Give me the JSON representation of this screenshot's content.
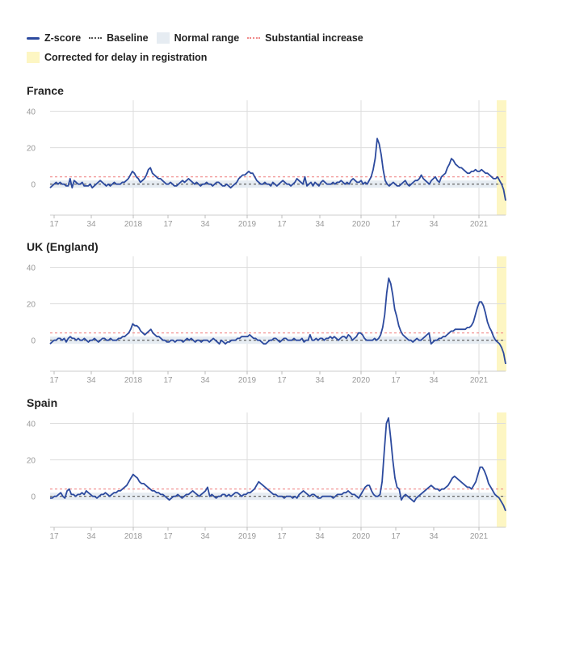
{
  "legend": {
    "zscore": "Z-score",
    "baseline": "Baseline",
    "normal": "Normal range",
    "substantial": "Substantial increase",
    "corrected": "Corrected for delay in registration"
  },
  "colors": {
    "line": "#2c4a9e",
    "baseline": "#555555",
    "normal_band": "#e6ecf2",
    "substantial": "#f08a8a",
    "corrected_band": "#fdf6c3",
    "grid": "#dddddd"
  },
  "chart_data": [
    {
      "type": "line",
      "title": "France",
      "ylim": [
        -17,
        46
      ],
      "yticks": [
        0,
        20,
        40
      ],
      "x_ticks": [
        "17",
        "34",
        "2018",
        "17",
        "34",
        "2019",
        "17",
        "34",
        "2020",
        "17",
        "34",
        "2021"
      ],
      "normal_range": [
        -2,
        2
      ],
      "substantial_increase": 4,
      "series": [
        {
          "values": [
            -2,
            -1,
            0,
            1,
            0,
            1,
            0,
            0,
            -1,
            -1,
            3,
            -2,
            2,
            1,
            0,
            0,
            1,
            -1,
            -1,
            -1,
            0,
            -2,
            -1,
            0,
            1,
            2,
            1,
            0,
            -1,
            0,
            -1,
            0,
            1,
            0,
            0,
            0,
            1,
            1,
            2,
            3,
            5,
            7,
            6,
            4,
            3,
            1,
            2,
            3,
            5,
            8,
            9,
            6,
            5,
            4,
            3,
            3,
            2,
            1,
            0,
            0,
            1,
            0,
            -1,
            -1,
            0,
            1,
            2,
            1,
            2,
            3,
            2,
            1,
            0,
            1,
            0,
            -1,
            0,
            0,
            1,
            0,
            0,
            -1,
            0,
            1,
            1,
            0,
            -1,
            -1,
            0,
            -1,
            -2,
            -1,
            0,
            1,
            3,
            4,
            5,
            5,
            6,
            7,
            6,
            6,
            4,
            2,
            1,
            0,
            0,
            1,
            0,
            0,
            -1,
            1,
            0,
            -1,
            0,
            1,
            2,
            1,
            0,
            0,
            -1,
            0,
            1,
            3,
            2,
            1,
            0,
            4,
            -1,
            0,
            1,
            -1,
            1,
            0,
            -1,
            1,
            2,
            1,
            0,
            0,
            0,
            1,
            0,
            1,
            1,
            2,
            1,
            0,
            1,
            0,
            2,
            3,
            2,
            1,
            1,
            2,
            0,
            1,
            0,
            2,
            4,
            8,
            14,
            25,
            22,
            16,
            8,
            2,
            0,
            -1,
            0,
            1,
            0,
            -1,
            -1,
            0,
            1,
            2,
            0,
            -1,
            0,
            1,
            2,
            2,
            3,
            5,
            3,
            2,
            1,
            0,
            2,
            3,
            4,
            2,
            1,
            4,
            5,
            6,
            9,
            11,
            14,
            13,
            11,
            10,
            9,
            9,
            8,
            7,
            6,
            6,
            7,
            7,
            8,
            7,
            7,
            8,
            7,
            6,
            6,
            5,
            4,
            3,
            3,
            4,
            2,
            0,
            -3,
            -9
          ]
        }
      ]
    },
    {
      "type": "line",
      "title": "UK (England)",
      "ylim": [
        -17,
        46
      ],
      "yticks": [
        0,
        20,
        40
      ],
      "x_ticks": [
        "17",
        "34",
        "2018",
        "17",
        "34",
        "2019",
        "17",
        "34",
        "2020",
        "17",
        "34",
        "2021"
      ],
      "normal_range": [
        -2,
        2
      ],
      "substantial_increase": 4,
      "series": [
        {
          "values": [
            -2,
            -1,
            0,
            0,
            1,
            1,
            0,
            1,
            -1,
            1,
            2,
            1,
            1,
            0,
            1,
            0,
            0,
            1,
            0,
            -1,
            0,
            0,
            1,
            0,
            -1,
            0,
            1,
            1,
            0,
            0,
            1,
            0,
            0,
            0,
            1,
            1,
            2,
            2,
            3,
            4,
            6,
            9,
            8,
            8,
            7,
            5,
            4,
            3,
            4,
            5,
            6,
            4,
            3,
            2,
            2,
            1,
            0,
            0,
            -1,
            -1,
            0,
            0,
            -1,
            0,
            0,
            0,
            -1,
            0,
            1,
            0,
            1,
            0,
            -1,
            0,
            0,
            -1,
            0,
            0,
            0,
            -1,
            0,
            1,
            0,
            -1,
            -2,
            0,
            -1,
            -2,
            -1,
            -1,
            0,
            0,
            0,
            1,
            1,
            2,
            2,
            2,
            2,
            3,
            2,
            1,
            1,
            0,
            0,
            -1,
            -2,
            -2,
            -1,
            0,
            0,
            1,
            1,
            0,
            -1,
            0,
            1,
            1,
            0,
            0,
            0,
            1,
            0,
            0,
            0,
            1,
            -1,
            0,
            0,
            3,
            0,
            0,
            1,
            0,
            1,
            1,
            0,
            1,
            1,
            2,
            1,
            2,
            1,
            0,
            1,
            2,
            2,
            1,
            3,
            2,
            0,
            1,
            2,
            4,
            4,
            3,
            1,
            0,
            0,
            0,
            0,
            1,
            0,
            1,
            3,
            7,
            14,
            26,
            34,
            31,
            25,
            17,
            13,
            8,
            5,
            3,
            2,
            1,
            0,
            0,
            -1,
            0,
            1,
            0,
            0,
            1,
            2,
            3,
            4,
            -2,
            -1,
            0,
            0,
            1,
            1,
            2,
            2,
            3,
            4,
            5,
            5,
            6,
            6,
            6,
            6,
            6,
            6,
            7,
            7,
            8,
            10,
            14,
            18,
            21,
            21,
            19,
            15,
            10,
            7,
            5,
            2,
            0,
            -1,
            -2,
            -4,
            -7,
            -13
          ]
        }
      ]
    },
    {
      "type": "line",
      "title": "Spain",
      "ylim": [
        -17,
        46
      ],
      "yticks": [
        0,
        20,
        40
      ],
      "x_ticks": [
        "17",
        "34",
        "2018",
        "17",
        "34",
        "2019",
        "17",
        "34",
        "2020",
        "17",
        "34",
        "2021"
      ],
      "normal_range": [
        -2,
        2
      ],
      "substantial_increase": 4,
      "series": [
        {
          "values": [
            -1,
            -1,
            0,
            0,
            1,
            2,
            0,
            -1,
            3,
            4,
            1,
            1,
            0,
            1,
            1,
            2,
            1,
            3,
            2,
            1,
            0,
            0,
            -1,
            0,
            1,
            1,
            2,
            1,
            0,
            1,
            2,
            2,
            3,
            3,
            4,
            5,
            6,
            8,
            10,
            12,
            11,
            10,
            8,
            7,
            7,
            6,
            5,
            4,
            3,
            3,
            2,
            2,
            1,
            1,
            0,
            -1,
            -2,
            -1,
            0,
            0,
            1,
            0,
            -1,
            0,
            1,
            1,
            2,
            3,
            2,
            1,
            0,
            1,
            2,
            3,
            5,
            0,
            1,
            0,
            -1,
            0,
            0,
            1,
            1,
            0,
            1,
            0,
            1,
            2,
            2,
            1,
            0,
            1,
            1,
            2,
            2,
            3,
            4,
            6,
            8,
            7,
            6,
            5,
            4,
            3,
            2,
            1,
            1,
            0,
            0,
            0,
            -1,
            0,
            0,
            0,
            -1,
            0,
            -1,
            1,
            2,
            3,
            2,
            1,
            0,
            1,
            1,
            0,
            -1,
            -1,
            0,
            0,
            0,
            0,
            0,
            -1,
            0,
            1,
            1,
            1,
            2,
            2,
            3,
            2,
            1,
            1,
            0,
            -1,
            1,
            3,
            5,
            6,
            6,
            3,
            1,
            0,
            0,
            1,
            8,
            25,
            40,
            43,
            32,
            20,
            10,
            5,
            4,
            -2,
            0,
            1,
            0,
            -1,
            -2,
            -3,
            -1,
            0,
            1,
            2,
            3,
            4,
            5,
            6,
            5,
            4,
            4,
            3,
            4,
            4,
            5,
            6,
            8,
            10,
            11,
            10,
            9,
            8,
            7,
            6,
            5,
            5,
            4,
            6,
            8,
            12,
            16,
            16,
            14,
            11,
            7,
            5,
            3,
            1,
            0,
            -1,
            -3,
            -5,
            -8
          ]
        }
      ]
    }
  ]
}
